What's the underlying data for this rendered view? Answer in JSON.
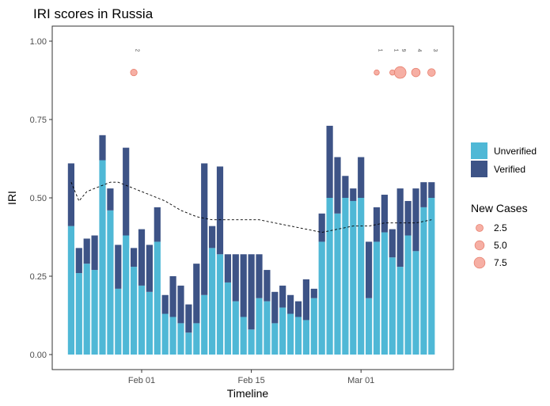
{
  "chart_data": {
    "type": "bar",
    "stacked": true,
    "title": "IRI scores in Russia",
    "xlabel": "Timeline",
    "ylabel": "IRI",
    "ylim": [
      0,
      1
    ],
    "y_ticks": [
      "0.00",
      "0.25",
      "0.50",
      "0.75",
      "1.00"
    ],
    "y_tick_values": [
      0,
      0.25,
      0.5,
      0.75,
      1
    ],
    "x_ticks": [
      {
        "label": "Feb 01",
        "day": 11
      },
      {
        "label": "Feb 15",
        "day": 25
      },
      {
        "label": "Mar 01",
        "day": 39
      }
    ],
    "x_start_date": "2020-01-22",
    "x_days": [
      2,
      3,
      4,
      5,
      6,
      7,
      8,
      9,
      10,
      11,
      12,
      13,
      14,
      15,
      16,
      17,
      18,
      19,
      20,
      21,
      22,
      23,
      24,
      25,
      26,
      27,
      28,
      29,
      30,
      31,
      32,
      33,
      34,
      35,
      36,
      37,
      38,
      39,
      40,
      41,
      42,
      43,
      44,
      45,
      46,
      47,
      48
    ],
    "series": [
      {
        "name": "Unverified",
        "color": "#4fb8d6",
        "values": [
          0.41,
          0.26,
          0.29,
          0.27,
          0.62,
          0.46,
          0.21,
          0.38,
          0.28,
          0.22,
          0.2,
          0.36,
          0.13,
          0.12,
          0.1,
          0.07,
          0.1,
          0.19,
          0.34,
          0.32,
          0.23,
          0.17,
          0.12,
          0.08,
          0.18,
          0.17,
          0.1,
          0.15,
          0.13,
          0.12,
          0.11,
          0.18,
          0.36,
          0.5,
          0.45,
          0.5,
          0.49,
          0.5,
          0.18,
          0.36,
          0.39,
          0.31,
          0.28,
          0.38,
          0.33,
          0.47,
          0.5
        ]
      },
      {
        "name": "Verified",
        "color": "#3d5386",
        "values": [
          0.2,
          0.08,
          0.08,
          0.11,
          0.08,
          0.07,
          0.14,
          0.28,
          0.06,
          0.18,
          0.15,
          0.11,
          0.06,
          0.13,
          0.12,
          0.09,
          0.19,
          0.42,
          0.07,
          0.28,
          0.09,
          0.15,
          0.2,
          0.24,
          0.14,
          0.1,
          0.1,
          0.07,
          0.06,
          0.05,
          0.13,
          0.03,
          0.09,
          0.23,
          0.18,
          0.07,
          0.04,
          0.13,
          0.18,
          0.11,
          0.12,
          0.09,
          0.25,
          0.11,
          0.2,
          0.08,
          0.05
        ]
      }
    ],
    "trend_line": {
      "style": "dashed",
      "x": [
        2,
        3,
        4,
        5,
        6,
        7,
        8,
        9,
        10,
        11,
        12,
        13,
        14,
        16,
        18,
        20,
        22,
        24,
        26,
        28,
        30,
        32,
        34,
        36,
        38,
        40,
        42,
        44,
        46,
        48
      ],
      "y": [
        0.55,
        0.49,
        0.52,
        0.53,
        0.54,
        0.55,
        0.55,
        0.54,
        0.53,
        0.52,
        0.51,
        0.5,
        0.49,
        0.46,
        0.44,
        0.43,
        0.43,
        0.43,
        0.43,
        0.42,
        0.41,
        0.4,
        0.39,
        0.4,
        0.41,
        0.41,
        0.42,
        0.42,
        0.42,
        0.43
      ]
    },
    "new_cases": {
      "y": 0.9,
      "color": "#f4a194",
      "points": [
        {
          "day": 10,
          "cases": 2,
          "label": "2"
        },
        {
          "day": 41,
          "cases": 1,
          "label": "1"
        },
        {
          "day": 43,
          "cases": 1,
          "label": "1"
        },
        {
          "day": 44,
          "cases": 9,
          "label": "9"
        },
        {
          "day": 46,
          "cases": 4,
          "label": "4"
        },
        {
          "day": 48,
          "cases": 3,
          "label": "3"
        }
      ]
    },
    "legend": {
      "placement": "right",
      "fill_title": "",
      "fill_entries": [
        "Unverified",
        "Verified"
      ],
      "size_title": "New Cases",
      "size_entries": [
        {
          "label": "2.5",
          "value": 2.5
        },
        {
          "label": "5.0",
          "value": 5.0
        },
        {
          "label": "7.5",
          "value": 7.5
        }
      ]
    },
    "grid": false
  }
}
